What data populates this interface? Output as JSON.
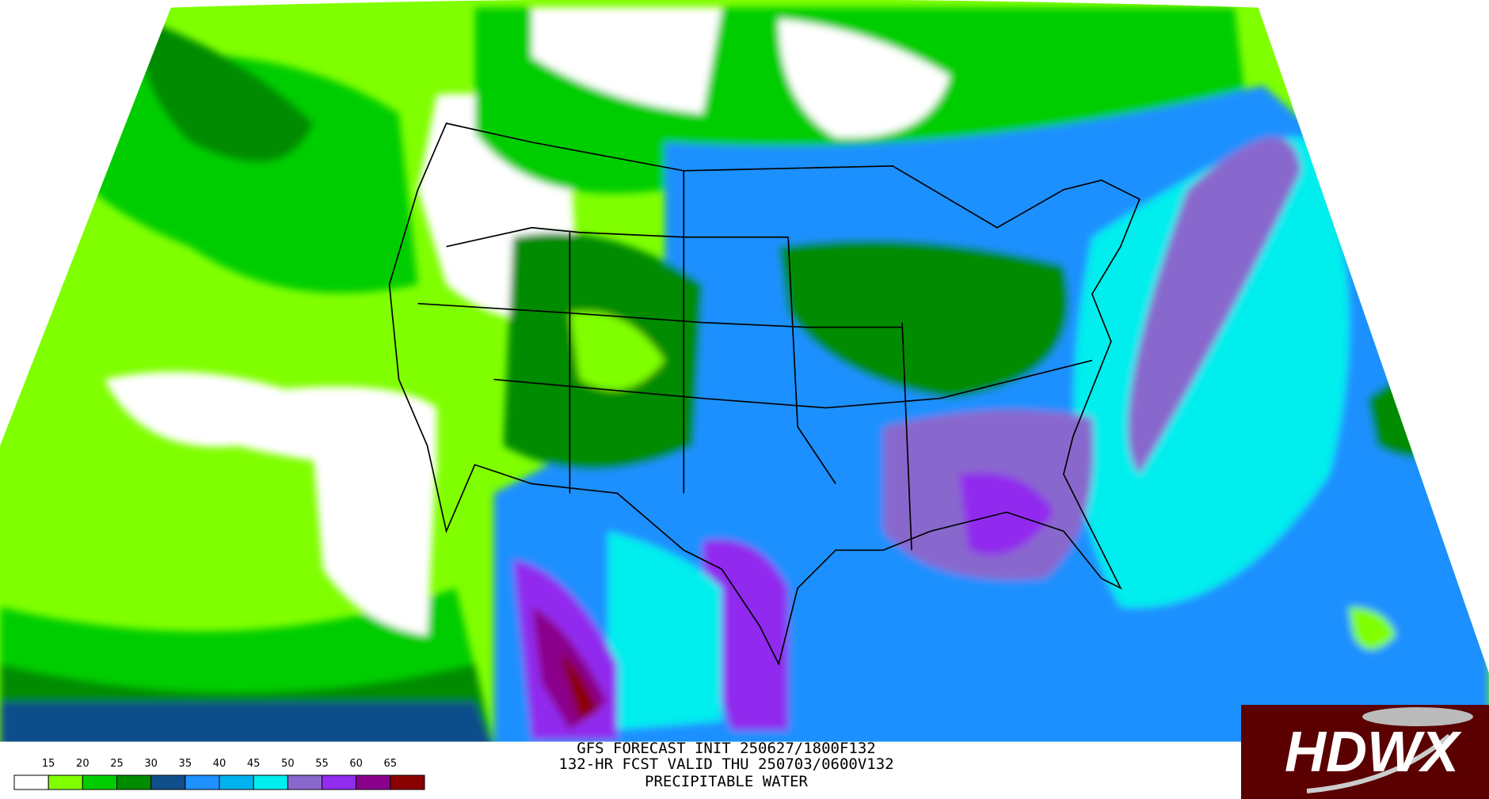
{
  "caption": {
    "lines": [
      "GFS FORECAST INIT 250627/1800F132",
      "132-HR FCST VALID THU 250703/0600V132",
      "PRECIPITABLE WATER"
    ]
  },
  "legend": {
    "labels": [
      15,
      20,
      25,
      30,
      35,
      40,
      45,
      50,
      55,
      60,
      65
    ],
    "colors": [
      "#ffffff",
      "#7fff00",
      "#00cd00",
      "#008b00",
      "#104e8b",
      "#1e90ff",
      "#00b2ee",
      "#00eeee",
      "#8968cd",
      "#912cee",
      "#8b008b",
      "#8b0000"
    ]
  },
  "logo": {
    "text": "HDWX"
  }
}
